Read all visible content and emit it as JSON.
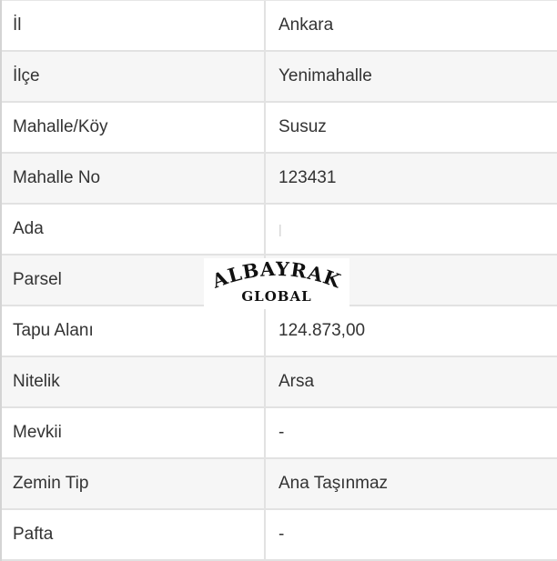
{
  "rows": [
    {
      "label": "İl",
      "value": "Ankara"
    },
    {
      "label": "İlçe",
      "value": "Yenimahalle"
    },
    {
      "label": "Mahalle/Köy",
      "value": "Susuz"
    },
    {
      "label": "Mahalle No",
      "value": "123431"
    },
    {
      "label": "Ada",
      "value": "|"
    },
    {
      "label": "Parsel",
      "value": ""
    },
    {
      "label": "Tapu Alanı",
      "value": "124.873,00"
    },
    {
      "label": "Nitelik",
      "value": "Arsa"
    },
    {
      "label": "Mevkii",
      "value": "-"
    },
    {
      "label": "Zemin Tip",
      "value": "Ana Taşınmaz"
    },
    {
      "label": "Pafta",
      "value": "-"
    }
  ],
  "watermark": {
    "line1": "ALBAYRAK",
    "line2": "GLOBAL"
  }
}
